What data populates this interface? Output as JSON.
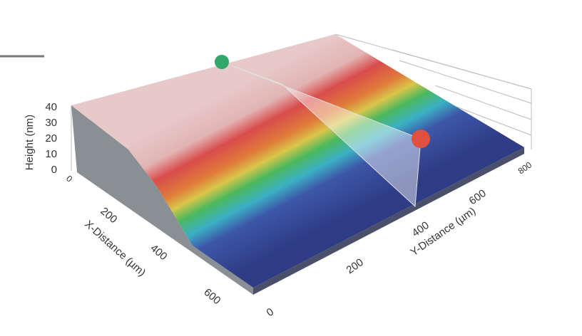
{
  "axes": {
    "height": {
      "label": "Height (nm)",
      "ticks": [
        "40",
        "30",
        "20",
        "10",
        "0"
      ]
    },
    "x": {
      "label": "X-Distance (µm)",
      "ticks": [
        "0",
        "200",
        "400",
        "600"
      ]
    },
    "y": {
      "label": "Y-Distance (µm)",
      "ticks": [
        "0",
        "200",
        "400",
        "600",
        "800"
      ]
    }
  }
}
